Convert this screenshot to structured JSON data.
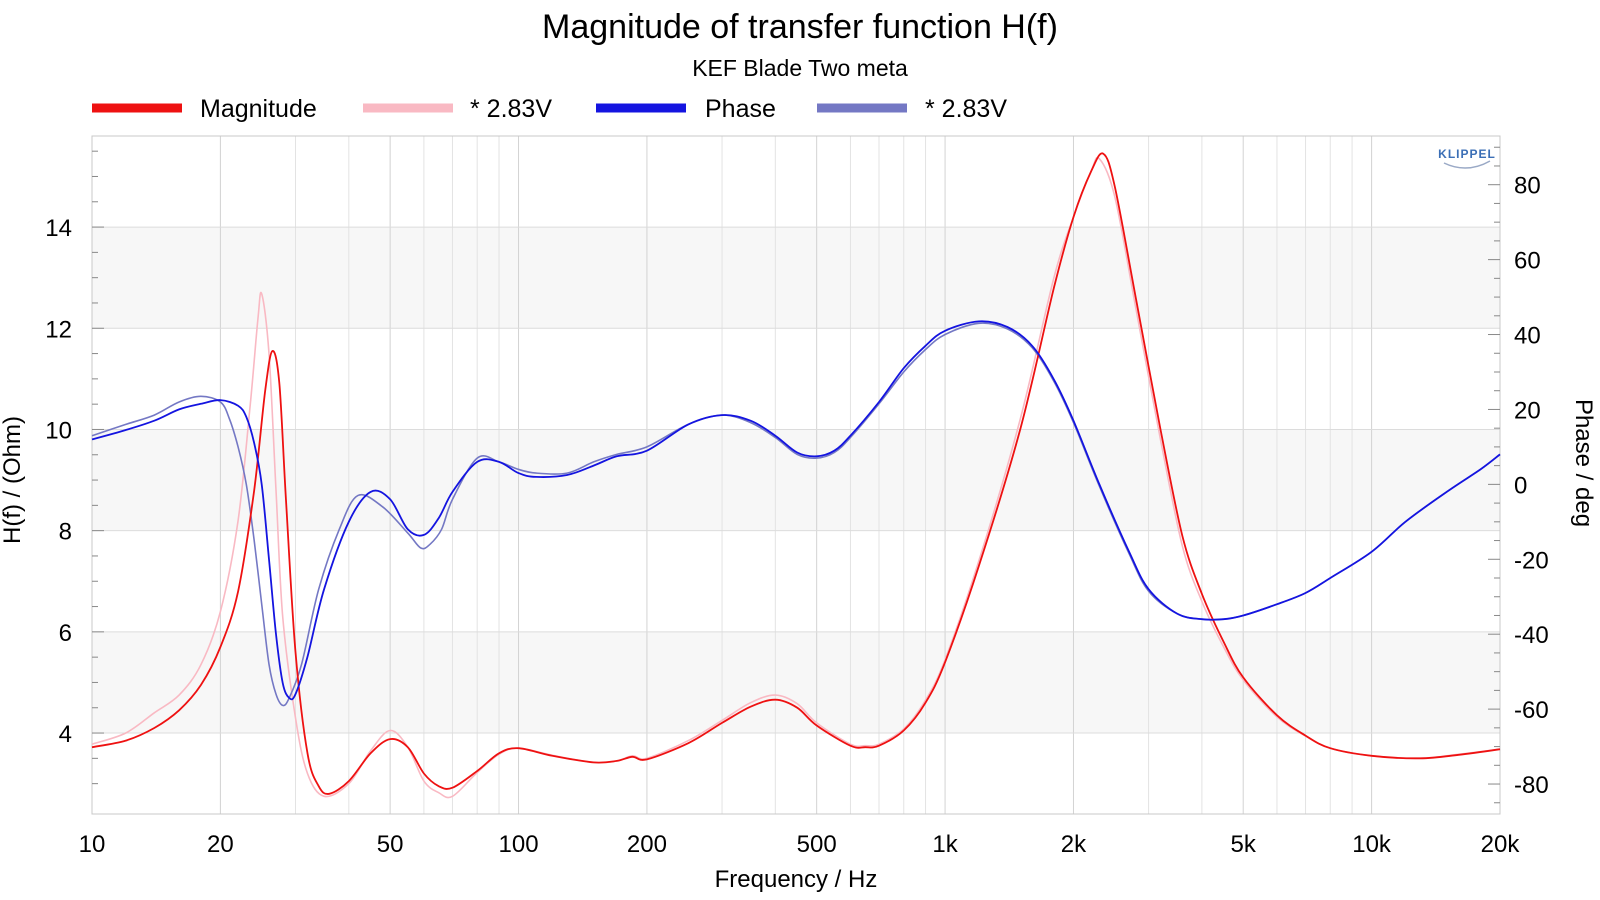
{
  "chart_data": {
    "type": "line",
    "title": "Magnitude of transfer function H(f)",
    "subtitle": "KEF Blade Two meta",
    "xlabel": "Frequency / Hz",
    "ylabel": "H(f) / (Ohm)",
    "y2label": "Phase / deg",
    "x_scale": "log",
    "xlim": [
      10,
      20000
    ],
    "ylim": [
      2.4,
      15.8
    ],
    "y2lim": [
      -88,
      93
    ],
    "x_ticks": [
      {
        "value": 10,
        "label": "10"
      },
      {
        "value": 20,
        "label": "20"
      },
      {
        "value": 50,
        "label": "50"
      },
      {
        "value": 100,
        "label": "100"
      },
      {
        "value": 200,
        "label": "200"
      },
      {
        "value": 500,
        "label": "500"
      },
      {
        "value": 1000,
        "label": "1k"
      },
      {
        "value": 2000,
        "label": "2k"
      },
      {
        "value": 5000,
        "label": "5k"
      },
      {
        "value": 10000,
        "label": "10k"
      },
      {
        "value": 20000,
        "label": "20k"
      }
    ],
    "y_ticks": [
      4,
      6,
      8,
      10,
      12,
      14
    ],
    "y2_ticks": [
      -80,
      -60,
      -40,
      -20,
      0,
      20,
      40,
      60,
      80
    ],
    "grid": true,
    "legend_position": "top",
    "logo_text": "KLIPPEL",
    "series": [
      {
        "name": "Magnitude",
        "axis": "left",
        "color": "#ee1111",
        "width": 1.8,
        "points": [
          [
            10,
            3.72
          ],
          [
            12,
            3.85
          ],
          [
            14,
            4.1
          ],
          [
            16,
            4.45
          ],
          [
            18,
            4.95
          ],
          [
            20,
            5.7
          ],
          [
            22,
            6.8
          ],
          [
            24,
            8.8
          ],
          [
            25.5,
            10.8
          ],
          [
            26.5,
            11.55
          ],
          [
            27.5,
            10.9
          ],
          [
            28.5,
            8.6
          ],
          [
            30,
            5.6
          ],
          [
            32,
            3.6
          ],
          [
            34,
            2.95
          ],
          [
            36,
            2.8
          ],
          [
            40,
            3.05
          ],
          [
            45,
            3.6
          ],
          [
            50,
            3.88
          ],
          [
            55,
            3.72
          ],
          [
            60,
            3.2
          ],
          [
            65,
            2.95
          ],
          [
            70,
            2.92
          ],
          [
            80,
            3.25
          ],
          [
            90,
            3.6
          ],
          [
            100,
            3.7
          ],
          [
            120,
            3.55
          ],
          [
            150,
            3.42
          ],
          [
            170,
            3.45
          ],
          [
            185,
            3.53
          ],
          [
            200,
            3.48
          ],
          [
            250,
            3.8
          ],
          [
            300,
            4.2
          ],
          [
            350,
            4.52
          ],
          [
            400,
            4.66
          ],
          [
            450,
            4.5
          ],
          [
            500,
            4.15
          ],
          [
            600,
            3.75
          ],
          [
            650,
            3.72
          ],
          [
            700,
            3.75
          ],
          [
            800,
            4.05
          ],
          [
            900,
            4.6
          ],
          [
            1000,
            5.4
          ],
          [
            1200,
            7.3
          ],
          [
            1500,
            10.0
          ],
          [
            1800,
            12.8
          ],
          [
            2000,
            14.2
          ],
          [
            2200,
            15.1
          ],
          [
            2350,
            15.45
          ],
          [
            2500,
            14.8
          ],
          [
            2800,
            12.6
          ],
          [
            3200,
            10.0
          ],
          [
            3600,
            7.9
          ],
          [
            4000,
            6.75
          ],
          [
            4500,
            5.8
          ],
          [
            5000,
            5.1
          ],
          [
            6000,
            4.35
          ],
          [
            7000,
            3.95
          ],
          [
            8000,
            3.7
          ],
          [
            10000,
            3.55
          ],
          [
            13000,
            3.5
          ],
          [
            16000,
            3.57
          ],
          [
            20000,
            3.68
          ]
        ]
      },
      {
        "name": "* 2.83V",
        "axis": "left",
        "color": "#f9b9c3",
        "width": 1.6,
        "points": [
          [
            10,
            3.78
          ],
          [
            12,
            4.0
          ],
          [
            14,
            4.4
          ],
          [
            16,
            4.75
          ],
          [
            18,
            5.35
          ],
          [
            20,
            6.4
          ],
          [
            22,
            8.2
          ],
          [
            23.5,
            10.5
          ],
          [
            24.5,
            12.2
          ],
          [
            25,
            12.68
          ],
          [
            26,
            11.5
          ],
          [
            27,
            8.8
          ],
          [
            28,
            6.3
          ],
          [
            30,
            4.3
          ],
          [
            32,
            3.2
          ],
          [
            35,
            2.75
          ],
          [
            40,
            3.0
          ],
          [
            45,
            3.65
          ],
          [
            50,
            4.05
          ],
          [
            55,
            3.72
          ],
          [
            60,
            3.05
          ],
          [
            65,
            2.82
          ],
          [
            70,
            2.75
          ],
          [
            80,
            3.22
          ],
          [
            90,
            3.58
          ],
          [
            100,
            3.7
          ],
          [
            120,
            3.56
          ],
          [
            150,
            3.42
          ],
          [
            170,
            3.45
          ],
          [
            185,
            3.55
          ],
          [
            200,
            3.5
          ],
          [
            250,
            3.85
          ],
          [
            300,
            4.25
          ],
          [
            350,
            4.6
          ],
          [
            400,
            4.75
          ],
          [
            450,
            4.58
          ],
          [
            500,
            4.2
          ],
          [
            600,
            3.78
          ],
          [
            650,
            3.75
          ],
          [
            700,
            3.78
          ],
          [
            800,
            4.08
          ],
          [
            900,
            4.65
          ],
          [
            1000,
            5.45
          ],
          [
            1200,
            7.4
          ],
          [
            1500,
            10.2
          ],
          [
            1800,
            13.0
          ],
          [
            2000,
            14.2
          ],
          [
            2200,
            15.1
          ],
          [
            2300,
            15.35
          ],
          [
            2500,
            14.6
          ],
          [
            2800,
            12.4
          ],
          [
            3200,
            9.8
          ],
          [
            3600,
            7.7
          ],
          [
            4000,
            6.6
          ],
          [
            4500,
            5.7
          ],
          [
            5000,
            5.05
          ],
          [
            6000,
            4.32
          ],
          [
            7000,
            3.94
          ],
          [
            8000,
            3.7
          ],
          [
            10000,
            3.55
          ],
          [
            13000,
            3.5
          ],
          [
            16000,
            3.58
          ],
          [
            20000,
            3.68
          ]
        ]
      },
      {
        "name": "Phase",
        "axis": "right",
        "color": "#1414e0",
        "width": 1.8,
        "points": [
          [
            10,
            12
          ],
          [
            12,
            14.5
          ],
          [
            14,
            17
          ],
          [
            16,
            20
          ],
          [
            18,
            21.5
          ],
          [
            20,
            22.5
          ],
          [
            22,
            21
          ],
          [
            23,
            18
          ],
          [
            24,
            11
          ],
          [
            25,
            0
          ],
          [
            26,
            -20
          ],
          [
            27,
            -40
          ],
          [
            28,
            -53
          ],
          [
            29,
            -57
          ],
          [
            30,
            -56
          ],
          [
            32,
            -46
          ],
          [
            35,
            -28
          ],
          [
            40,
            -10
          ],
          [
            45,
            -2
          ],
          [
            50,
            -4
          ],
          [
            55,
            -12
          ],
          [
            60,
            -13.5
          ],
          [
            65,
            -9
          ],
          [
            70,
            -2
          ],
          [
            80,
            6
          ],
          [
            90,
            6
          ],
          [
            100,
            3
          ],
          [
            110,
            2
          ],
          [
            130,
            2.5
          ],
          [
            150,
            5
          ],
          [
            170,
            7.5
          ],
          [
            200,
            9
          ],
          [
            250,
            16
          ],
          [
            300,
            18.5
          ],
          [
            350,
            17
          ],
          [
            400,
            13
          ],
          [
            450,
            8.5
          ],
          [
            500,
            7.5
          ],
          [
            550,
            9
          ],
          [
            600,
            13
          ],
          [
            700,
            22
          ],
          [
            800,
            31
          ],
          [
            900,
            37
          ],
          [
            1000,
            41
          ],
          [
            1200,
            43.5
          ],
          [
            1400,
            42
          ],
          [
            1600,
            37
          ],
          [
            1800,
            28
          ],
          [
            2000,
            17
          ],
          [
            2300,
            0
          ],
          [
            2700,
            -18
          ],
          [
            3000,
            -28
          ],
          [
            3500,
            -34.5
          ],
          [
            4000,
            -36
          ],
          [
            4500,
            -36
          ],
          [
            5000,
            -35
          ],
          [
            6000,
            -32
          ],
          [
            7000,
            -29
          ],
          [
            8000,
            -25
          ],
          [
            10000,
            -18
          ],
          [
            12000,
            -10
          ],
          [
            15000,
            -2
          ],
          [
            18000,
            4
          ],
          [
            20000,
            8
          ]
        ]
      },
      {
        "name": "* 2.83V",
        "axis": "right",
        "color": "#7478c4",
        "width": 1.6,
        "points": [
          [
            10,
            13
          ],
          [
            12,
            16
          ],
          [
            14,
            18.5
          ],
          [
            16,
            22
          ],
          [
            18,
            23.5
          ],
          [
            20,
            22
          ],
          [
            21,
            17.5
          ],
          [
            22,
            10
          ],
          [
            23,
            0
          ],
          [
            24,
            -15
          ],
          [
            25,
            -32
          ],
          [
            26,
            -48
          ],
          [
            27,
            -56
          ],
          [
            28,
            -59
          ],
          [
            29,
            -57
          ],
          [
            31,
            -48
          ],
          [
            34,
            -28
          ],
          [
            38,
            -12
          ],
          [
            42,
            -3
          ],
          [
            48,
            -6
          ],
          [
            55,
            -13
          ],
          [
            59,
            -17
          ],
          [
            62,
            -16
          ],
          [
            66,
            -12
          ],
          [
            70,
            -4
          ],
          [
            80,
            7
          ],
          [
            90,
            6
          ],
          [
            100,
            4
          ],
          [
            110,
            3
          ],
          [
            130,
            3
          ],
          [
            150,
            6
          ],
          [
            170,
            8
          ],
          [
            200,
            10
          ],
          [
            250,
            16
          ],
          [
            300,
            18.5
          ],
          [
            350,
            16.5
          ],
          [
            400,
            12.5
          ],
          [
            450,
            8
          ],
          [
            500,
            7
          ],
          [
            550,
            8.5
          ],
          [
            600,
            12.5
          ],
          [
            700,
            21.5
          ],
          [
            800,
            30
          ],
          [
            900,
            36
          ],
          [
            1000,
            40
          ],
          [
            1200,
            43
          ],
          [
            1400,
            41.5
          ],
          [
            1600,
            36.5
          ],
          [
            1800,
            27.5
          ],
          [
            2000,
            16.5
          ],
          [
            2300,
            -0.5
          ],
          [
            2700,
            -18.5
          ],
          [
            3000,
            -28.5
          ],
          [
            3500,
            -34.5
          ],
          [
            4000,
            -36
          ],
          [
            4500,
            -36
          ],
          [
            5000,
            -35
          ],
          [
            6000,
            -32
          ],
          [
            7000,
            -29
          ],
          [
            8000,
            -25
          ],
          [
            10000,
            -18
          ],
          [
            12000,
            -10
          ],
          [
            15000,
            -2
          ],
          [
            18000,
            4
          ],
          [
            20000,
            8
          ]
        ]
      }
    ]
  }
}
